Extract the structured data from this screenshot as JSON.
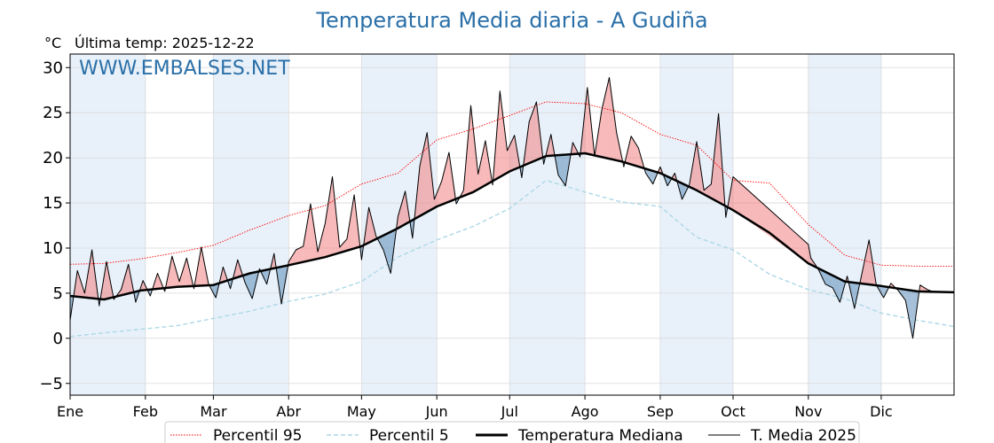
{
  "chart_data": {
    "type": "line",
    "title": "Temperatura Media diaria - A Gudiña",
    "unit_label": "°C",
    "last_temp_label": "Última temp: 2025-12-22",
    "watermark": "WWW.EMBALSES.NET",
    "xlabel": "",
    "ylabel": "",
    "ylim": [
      -6.3,
      31.5
    ],
    "yticks": [
      "−5",
      "0",
      "5",
      "10",
      "15",
      "20",
      "25",
      "30"
    ],
    "ytick_values": [
      -5,
      0,
      5,
      10,
      15,
      20,
      25,
      30
    ],
    "months": [
      "Ene",
      "Feb",
      "Mar",
      "Abr",
      "May",
      "Jun",
      "Jul",
      "Ago",
      "Sep",
      "Oct",
      "Nov",
      "Dic"
    ],
    "month_start_days": [
      1,
      32,
      60,
      91,
      121,
      152,
      182,
      213,
      244,
      274,
      305,
      335
    ],
    "grid": true,
    "legend_position": "bottom",
    "colors": {
      "p95": "#ff0000",
      "p5": "#add8e6",
      "median": "#000000",
      "current": "#000000",
      "above_fill": "#f08080",
      "below_fill": "#5b8db8",
      "band": "#e8f1fa",
      "title": "#2a6fa8"
    },
    "series": [
      {
        "name": "Percentil 95",
        "style": "dotted",
        "x": [
          1,
          15,
          30,
          45,
          60,
          75,
          91,
          106,
          121,
          136,
          152,
          167,
          182,
          197,
          213,
          228,
          244,
          259,
          274,
          289,
          305,
          320,
          335,
          350,
          365
        ],
        "values": [
          8.2,
          8.3,
          8.8,
          9.5,
          10.3,
          12.0,
          13.6,
          14.7,
          17.1,
          18.3,
          22.0,
          23.2,
          24.7,
          26.2,
          26.0,
          25.0,
          22.6,
          21.4,
          17.5,
          17.2,
          12.6,
          9.2,
          8.1,
          8.0,
          8.0
        ]
      },
      {
        "name": "Percentil 5",
        "style": "dashed",
        "x": [
          1,
          15,
          30,
          45,
          60,
          75,
          91,
          106,
          121,
          136,
          152,
          167,
          182,
          197,
          213,
          228,
          244,
          259,
          274,
          289,
          305,
          320,
          335,
          350,
          365
        ],
        "values": [
          0.2,
          0.6,
          1.0,
          1.4,
          2.2,
          3.0,
          4.1,
          4.9,
          6.3,
          9.0,
          10.9,
          12.4,
          14.4,
          17.5,
          16.2,
          15.1,
          14.6,
          11.2,
          9.8,
          7.1,
          5.4,
          4.4,
          2.8,
          2.0,
          1.3
        ]
      },
      {
        "name": "Temperatura Mediana",
        "style": "thick",
        "x": [
          1,
          15,
          30,
          45,
          60,
          75,
          91,
          106,
          121,
          136,
          152,
          167,
          182,
          197,
          213,
          228,
          244,
          259,
          274,
          289,
          305,
          320,
          335,
          350,
          365
        ],
        "values": [
          4.7,
          4.3,
          5.3,
          5.7,
          5.9,
          7.2,
          8.1,
          9.0,
          10.2,
          12.2,
          14.6,
          16.2,
          18.5,
          20.2,
          20.5,
          19.6,
          18.3,
          16.4,
          14.2,
          11.7,
          8.3,
          6.3,
          5.8,
          5.2,
          5.1
        ]
      },
      {
        "name": "T. Media 2025",
        "style": "thin",
        "x": [
          1,
          4,
          7,
          10,
          13,
          16,
          19,
          22,
          25,
          28,
          31,
          34,
          37,
          40,
          43,
          46,
          49,
          52,
          55,
          58,
          61,
          64,
          67,
          70,
          73,
          76,
          79,
          82,
          85,
          88,
          91,
          94,
          97,
          100,
          103,
          106,
          109,
          112,
          115,
          118,
          121,
          124,
          127,
          130,
          133,
          136,
          139,
          142,
          145,
          148,
          151,
          154,
          157,
          160,
          163,
          166,
          169,
          172,
          175,
          178,
          181,
          184,
          187,
          190,
          193,
          196,
          199,
          202,
          205,
          208,
          211,
          214,
          217,
          220,
          223,
          226,
          229,
          232,
          235,
          238,
          241,
          244,
          247,
          250,
          253,
          256,
          259,
          262,
          265,
          268,
          271,
          274,
          305,
          306,
          309,
          312,
          315,
          318,
          321,
          324,
          327,
          330,
          333,
          336,
          339,
          342,
          345,
          348,
          351,
          354,
          356
        ],
        "values": [
          2.0,
          7.5,
          5.0,
          9.8,
          3.6,
          8.5,
          4.3,
          5.4,
          8.2,
          4.0,
          6.4,
          4.7,
          7.2,
          5.2,
          9.1,
          6.3,
          8.9,
          5.5,
          10.1,
          6.0,
          4.5,
          7.9,
          5.5,
          8.7,
          6.2,
          4.4,
          7.7,
          6.0,
          9.4,
          3.8,
          8.5,
          9.8,
          10.2,
          14.9,
          9.6,
          12.7,
          17.9,
          10.1,
          11.0,
          15.9,
          8.7,
          14.5,
          11.3,
          9.8,
          7.2,
          13.5,
          16.3,
          11.1,
          19.1,
          22.8,
          15.4,
          17.4,
          20.6,
          14.9,
          16.4,
          25.8,
          18.2,
          21.9,
          17.0,
          27.4,
          20.8,
          22.5,
          17.8,
          24.0,
          26.2,
          19.3,
          22.6,
          18.1,
          16.9,
          21.7,
          20.1,
          27.8,
          20.2,
          25.4,
          28.9,
          22.8,
          19.0,
          22.4,
          21.1,
          18.3,
          17.1,
          19.0,
          16.9,
          18.3,
          15.4,
          17.0,
          21.8,
          16.4,
          17.1,
          24.9,
          13.4,
          17.9,
          10.4,
          8.9,
          7.7,
          6.0,
          5.6,
          4.0,
          6.9,
          3.3,
          7.1,
          10.9,
          5.9,
          4.5,
          6.1,
          5.3,
          4.2,
          0.0,
          5.9,
          5.4,
          5.2
        ]
      }
    ]
  },
  "legend": {
    "items": [
      "Percentil 95",
      "Percentil 5",
      "Temperatura Mediana",
      "T. Media 2025"
    ]
  }
}
